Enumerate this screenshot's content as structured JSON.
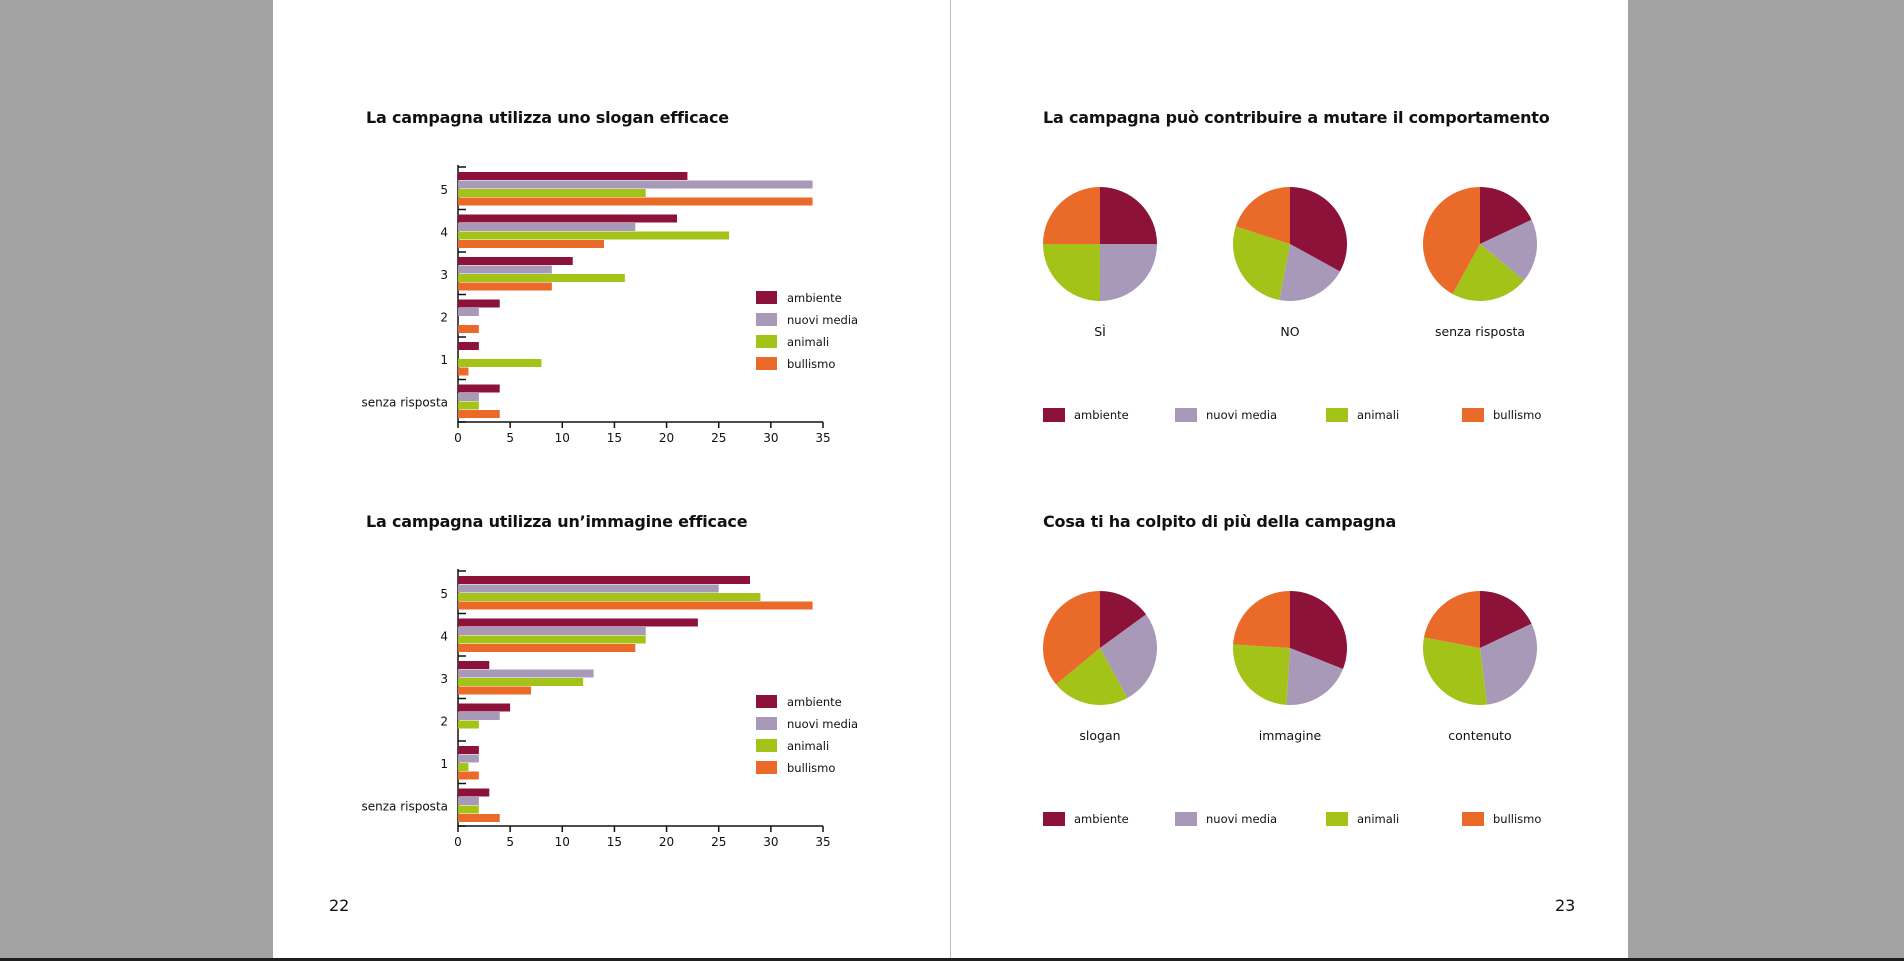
{
  "colors": {
    "ambiente": "#8c1239",
    "nuovi_media": "#a799b7",
    "animali": "#a3c319",
    "bullismo": "#ea6a2a"
  },
  "left_page": {
    "page_number": "22",
    "chart1_title": "La campagna utilizza uno slogan efficace",
    "chart2_title": "La campagna utilizza un’immagine efficace"
  },
  "right_page": {
    "page_number": "23",
    "chart3_title": "La campagna può contribuire a mutare il comportamento",
    "chart4_title": "Cosa ti ha colpito di più della campagna"
  },
  "chart_data": [
    {
      "type": "bar",
      "orientation": "horizontal",
      "title": "La campagna utilizza uno slogan efficace",
      "categories": [
        "5",
        "4",
        "3",
        "2",
        "1",
        "senza risposta"
      ],
      "xlim": [
        0,
        35
      ],
      "xticks": [
        "0",
        "5",
        "10",
        "15",
        "20",
        "25",
        "30",
        "35"
      ],
      "legend_position": "right",
      "series": [
        {
          "name": "ambiente",
          "values": [
            22,
            21,
            11,
            4,
            2,
            4
          ]
        },
        {
          "name": "nuovi media",
          "values": [
            34,
            17,
            9,
            2,
            0,
            2
          ]
        },
        {
          "name": "animali",
          "values": [
            18,
            26,
            16,
            0,
            8,
            2
          ]
        },
        {
          "name": "bullismo",
          "values": [
            34,
            14,
            9,
            2,
            1,
            4
          ]
        }
      ]
    },
    {
      "type": "bar",
      "orientation": "horizontal",
      "title": "La campagna utilizza un’immagine efficace",
      "categories": [
        "5",
        "4",
        "3",
        "2",
        "1",
        "senza risposta"
      ],
      "xlim": [
        0,
        35
      ],
      "xticks": [
        "0",
        "5",
        "10",
        "15",
        "20",
        "25",
        "30",
        "35"
      ],
      "legend_position": "right",
      "series": [
        {
          "name": "ambiente",
          "values": [
            28,
            23,
            3,
            5,
            2,
            3
          ]
        },
        {
          "name": "nuovi media",
          "values": [
            25,
            18,
            13,
            4,
            2,
            2
          ]
        },
        {
          "name": "animali",
          "values": [
            29,
            18,
            12,
            2,
            1,
            2
          ]
        },
        {
          "name": "bullismo",
          "values": [
            34,
            17,
            7,
            0,
            2,
            4
          ]
        }
      ]
    },
    {
      "type": "pie",
      "title": "La campagna può contribuire a mutare il comportamento",
      "legend": [
        "ambiente",
        "nuovi media",
        "animali",
        "bullismo"
      ],
      "pies": [
        {
          "label": "SÌ",
          "values": [
            25,
            25,
            25,
            25
          ]
        },
        {
          "label": "NO",
          "values": [
            33,
            20,
            27,
            20
          ]
        },
        {
          "label": "senza risposta",
          "values": [
            18,
            18,
            22,
            42
          ]
        }
      ]
    },
    {
      "type": "pie",
      "title": "Cosa ti ha colpito di più della campagna",
      "legend": [
        "ambiente",
        "nuovi media",
        "animali",
        "bullismo"
      ],
      "pies": [
        {
          "label": "slogan",
          "values": [
            15,
            27,
            22,
            36
          ]
        },
        {
          "label": "immagine",
          "values": [
            31,
            20,
            25,
            24
          ]
        },
        {
          "label": "contenuto",
          "values": [
            18,
            30,
            30,
            22
          ]
        }
      ]
    }
  ]
}
